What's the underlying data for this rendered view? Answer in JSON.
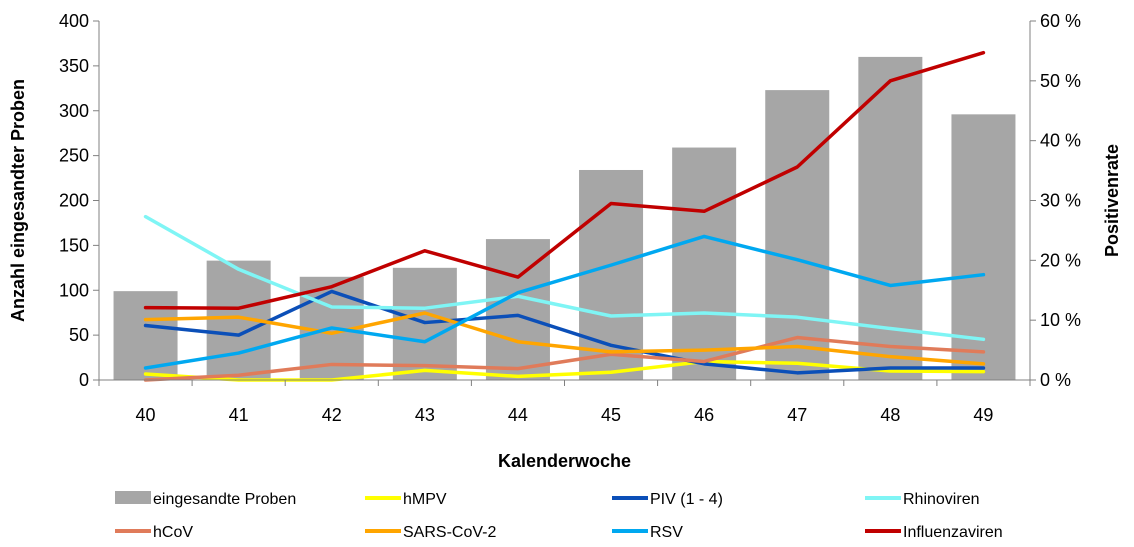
{
  "chart_data": {
    "type": "bar+line",
    "title": "",
    "xlabel": "Kalenderwoche",
    "ylabel_left": "Anzahl eingesandter Proben",
    "ylabel_right": "Positivenrate",
    "categories": [
      "40",
      "41",
      "42",
      "43",
      "44",
      "45",
      "46",
      "47",
      "48",
      "49"
    ],
    "ylim_left": [
      0,
      400
    ],
    "yticks_left": [
      0,
      50,
      100,
      150,
      200,
      250,
      300,
      350,
      400
    ],
    "ylim_right": [
      0,
      60
    ],
    "yticks_right": [
      0,
      10,
      20,
      30,
      40,
      50,
      60
    ],
    "yticks_right_labels": [
      "0 %",
      "10 %",
      "20 %",
      "30 %",
      "40 %",
      "50 %",
      "60 %"
    ],
    "grid": false,
    "legend_position": "bottom",
    "bars": {
      "name": "eingesandte Proben",
      "axis": "left",
      "color": "#a6a6a6",
      "values": [
        99,
        133,
        115,
        125,
        157,
        234,
        259,
        323,
        360,
        296
      ]
    },
    "series": [
      {
        "name": "hMPV",
        "axis": "right",
        "color": "#ffff00",
        "values": [
          1.0,
          0.0,
          0.0,
          1.6,
          0.6,
          1.3,
          3.1,
          2.8,
          1.5,
          1.4
        ]
      },
      {
        "name": "PIV (1 - 4)",
        "axis": "right",
        "color": "#0b4fb8",
        "values": [
          9.1,
          7.5,
          14.8,
          9.6,
          10.8,
          5.8,
          2.7,
          1.2,
          2.0,
          2.0
        ]
      },
      {
        "name": "Rhinoviren",
        "axis": "right",
        "color": "#7ff5f5",
        "values": [
          27.3,
          18.5,
          12.2,
          12.0,
          14.0,
          10.7,
          11.2,
          10.5,
          8.6,
          6.8
        ]
      },
      {
        "name": "hCoV",
        "axis": "right",
        "color": "#e07b5a",
        "values": [
          0.0,
          0.8,
          2.6,
          2.4,
          1.9,
          4.3,
          3.1,
          7.1,
          5.6,
          4.7
        ]
      },
      {
        "name": "SARS-CoV-2",
        "axis": "right",
        "color": "#ffa500",
        "values": [
          10.1,
          10.5,
          7.8,
          11.2,
          6.4,
          4.7,
          5.0,
          5.6,
          3.9,
          2.7
        ]
      },
      {
        "name": "RSV",
        "axis": "right",
        "color": "#00a8f0",
        "values": [
          2.0,
          4.5,
          8.7,
          6.4,
          14.6,
          19.2,
          24.0,
          20.1,
          15.8,
          17.6
        ]
      },
      {
        "name": "Influenzaviren",
        "axis": "right",
        "color": "#c00000",
        "values": [
          12.1,
          12.0,
          15.6,
          21.6,
          17.2,
          29.5,
          28.2,
          35.6,
          50.0,
          54.7
        ]
      }
    ],
    "legend": [
      "eingesandte Proben",
      "hMPV",
      "PIV (1 - 4)",
      "Rhinoviren",
      "hCoV",
      "SARS-CoV-2",
      "RSV",
      "Influenzaviren"
    ]
  }
}
